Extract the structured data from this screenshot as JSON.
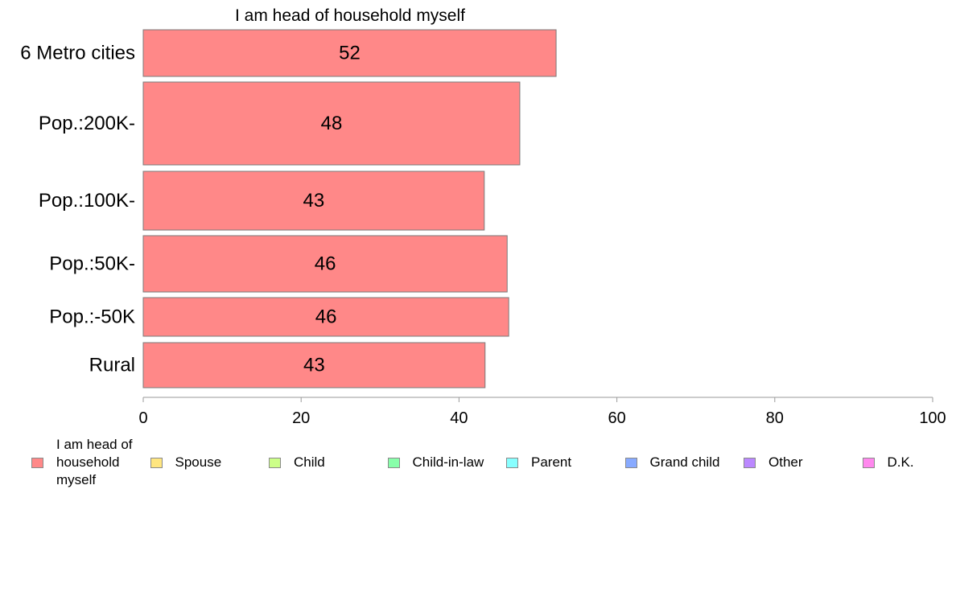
{
  "chart_data": {
    "type": "bar",
    "orientation": "horizontal",
    "title": "I am head of household myself",
    "categories": [
      "6 Metro cities",
      "Pop.:200K-",
      "Pop.:100K-",
      "Pop.:50K-",
      "Pop.:-50K",
      "Rural"
    ],
    "values": [
      52.3,
      47.7,
      43.2,
      46.1,
      46.3,
      43.3
    ],
    "value_labels": [
      "52",
      "48",
      "43",
      "46",
      "46",
      "43"
    ],
    "xlim": [
      0,
      100
    ],
    "x_ticks": [
      "0",
      "20",
      "40",
      "60",
      "80",
      "100"
    ],
    "bar_color": "#ff8888",
    "legend_position": "bottom",
    "legend": [
      {
        "label": "I am head of\nhousehold\nmyself",
        "color": "#ff8888"
      },
      {
        "label": "Spouse",
        "color": "#ffe680"
      },
      {
        "label": "Child",
        "color": "#ccff88"
      },
      {
        "label": "Child-in-law",
        "color": "#88ffaa"
      },
      {
        "label": "Parent",
        "color": "#88ffff"
      },
      {
        "label": "Grand child",
        "color": "#88aaff"
      },
      {
        "label": "Other",
        "color": "#bb88ff"
      },
      {
        "label": "D.K.",
        "color": "#ff88ee"
      }
    ]
  }
}
